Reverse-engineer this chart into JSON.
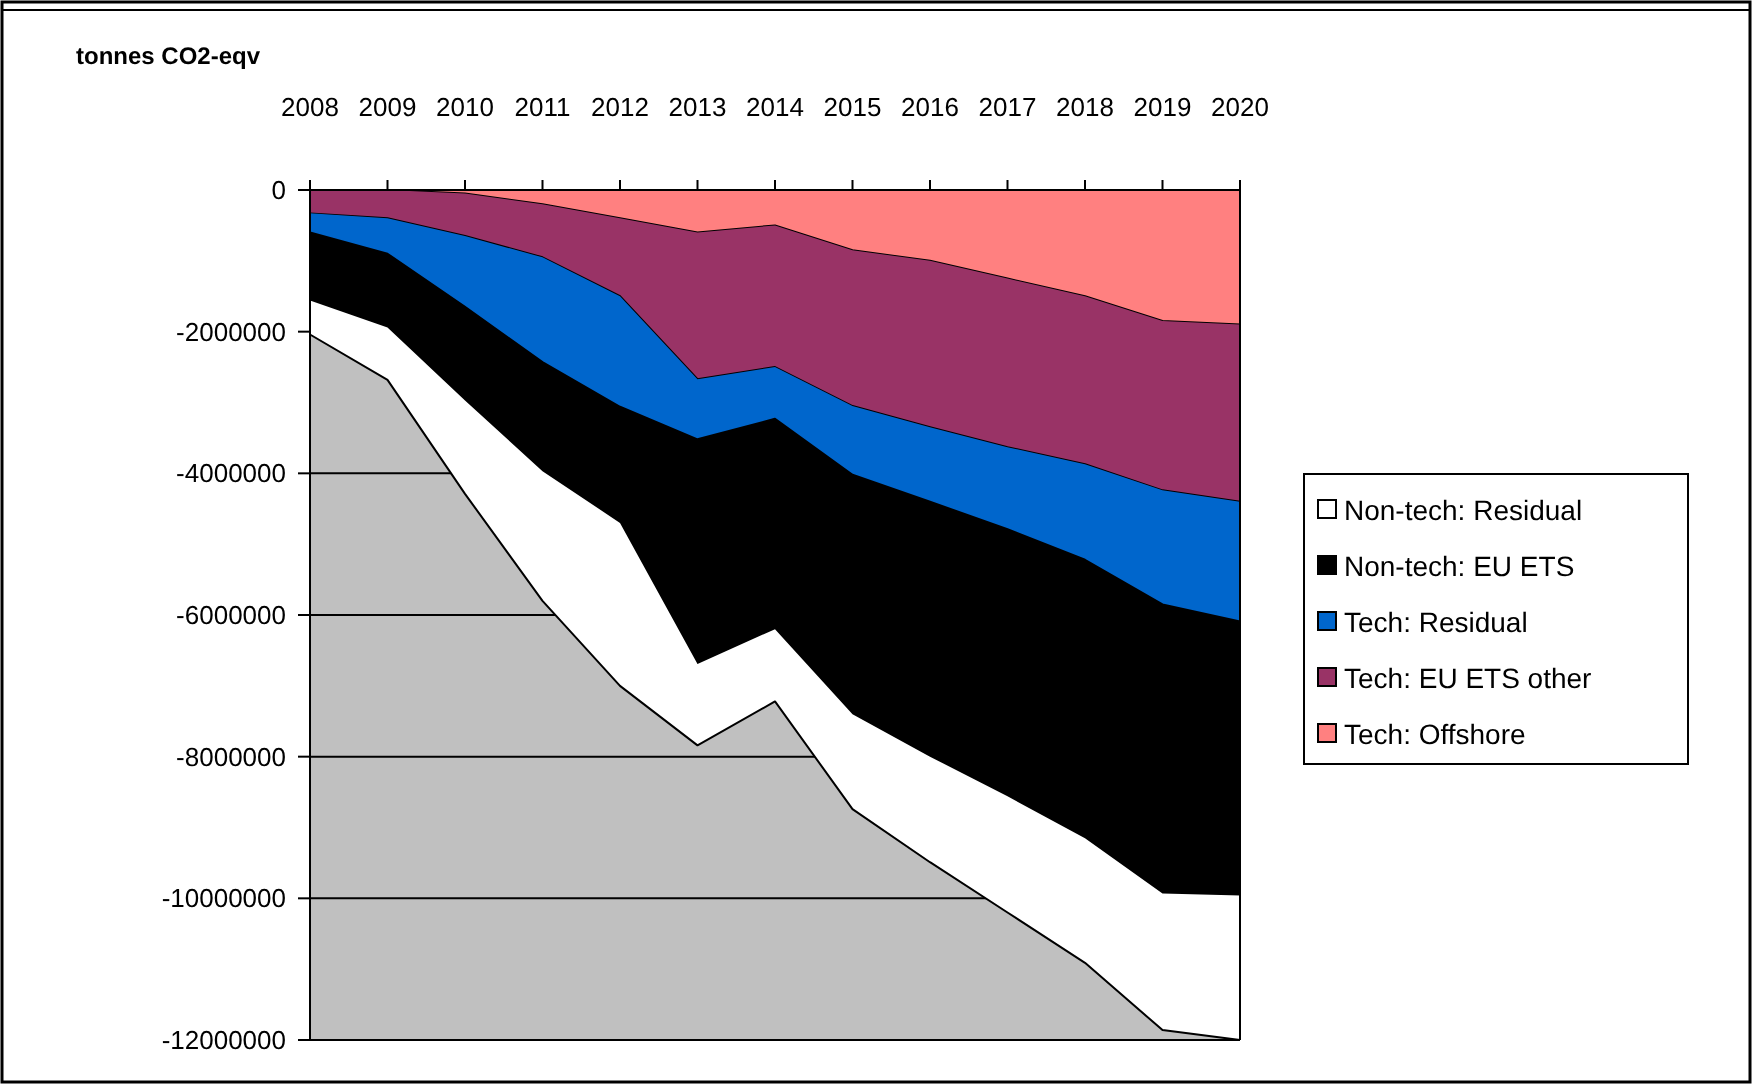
{
  "chart_data": {
    "type": "area",
    "stacked": true,
    "ylabel": "tonnes CO2-eqv",
    "categories": [
      "2008",
      "2009",
      "2010",
      "2011",
      "2012",
      "2013",
      "2014",
      "2015",
      "2016",
      "2017",
      "2018",
      "2019",
      "2020"
    ],
    "ylim": [
      -12000000,
      0
    ],
    "yticks": [
      0,
      -2000000,
      -4000000,
      -6000000,
      -8000000,
      -10000000,
      -12000000
    ],
    "grid": "y",
    "legend": "right",
    "series": [
      {
        "name": "Tech: Offshore",
        "color": "#ff8080",
        "values": [
          0,
          0,
          -50000,
          -200000,
          -400000,
          -600000,
          -500000,
          -850000,
          -1000000,
          -1250000,
          -1500000,
          -1850000,
          -1900000
        ]
      },
      {
        "name": "Tech: EU ETS other",
        "color": "#993366",
        "values": [
          -330000,
          -400000,
          -600000,
          -750000,
          -1100000,
          -2070000,
          -2000000,
          -2200000,
          -2350000,
          -2380000,
          -2370000,
          -2390000,
          -2500000
        ]
      },
      {
        "name": "Tech: Residual",
        "color": "#0066cc",
        "values": [
          -270000,
          -500000,
          -1000000,
          -1480000,
          -1560000,
          -850000,
          -730000,
          -970000,
          -1050000,
          -1160000,
          -1350000,
          -1610000,
          -1690000
        ]
      },
      {
        "name": "Non-tech: EU ETS",
        "color": "#000000",
        "values": [
          -960000,
          -1040000,
          -1320000,
          -1540000,
          -1640000,
          -3170000,
          -2970000,
          -3380000,
          -3600000,
          -3770000,
          -3930000,
          -4080000,
          -3870000
        ]
      },
      {
        "name": "Non-tech: Residual",
        "color": "#ffffff",
        "values": [
          -480000,
          -740000,
          -1320000,
          -1830000,
          -2300000,
          -1150000,
          -1020000,
          -1340000,
          -1490000,
          -1640000,
          -1760000,
          -1930000,
          -2040000
        ]
      }
    ]
  }
}
